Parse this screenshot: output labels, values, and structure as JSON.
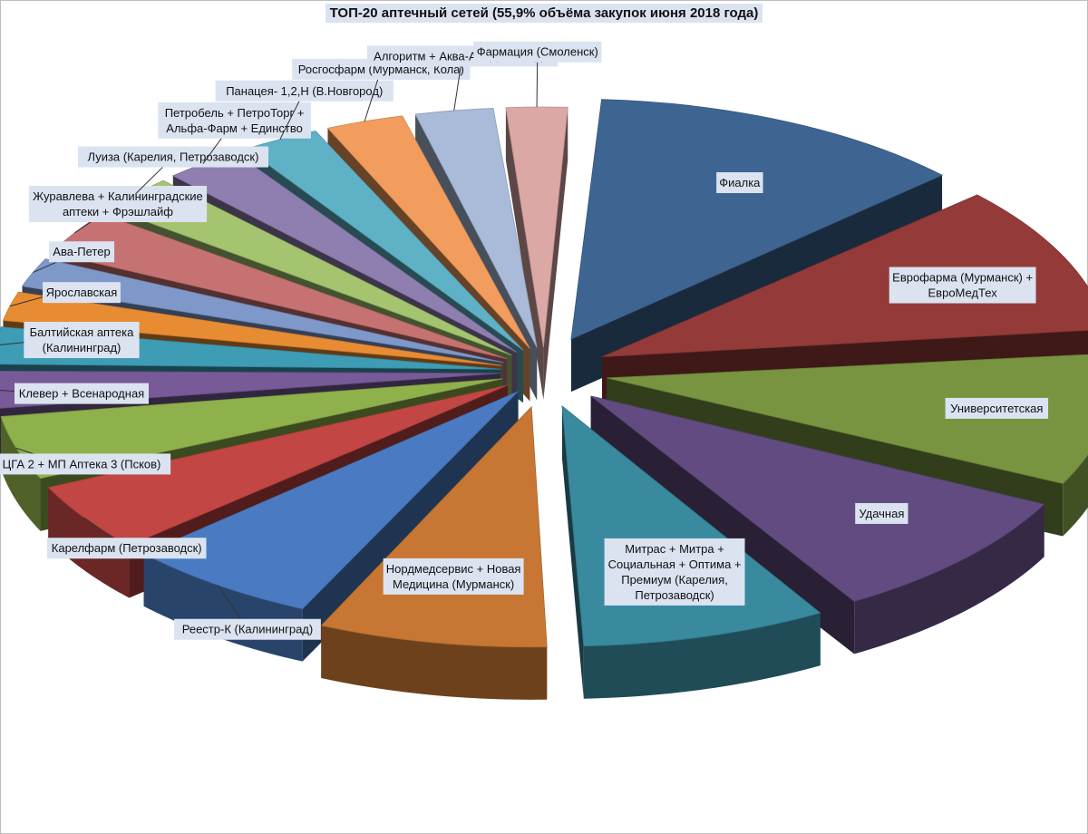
{
  "chart_data": {
    "type": "pie",
    "title": "ТОП-20 аптечный сетей (55,9% объёма закупок июня 2018 года)",
    "exploded": true,
    "three_d": true,
    "data_labels": "category names only",
    "slices": [
      {
        "label": "Фиалка",
        "value": 11.5,
        "color": "#3e6592"
      },
      {
        "label": "Еврофарма (Мурманск) + ЕвроМедТех",
        "value": 9.5,
        "color": "#943b39"
      },
      {
        "label": "Университетская",
        "value": 8.5,
        "color": "#789440"
      },
      {
        "label": "Удачная",
        "value": 8.5,
        "color": "#614b80"
      },
      {
        "label": "Митрас + Митра + Социальная + Оптима + Премиум (Карелия, Петрозаводск)",
        "value": 7.5,
        "color": "#398a9e"
      },
      {
        "label": "Нордмедсервис + Новая Медицина (Мурманск)",
        "value": 7.0,
        "color": "#c77733"
      },
      {
        "label": "Реестр-К (Калининград)",
        "value": 6.0,
        "color": "#4a7bc2"
      },
      {
        "label": "Карелфарм (Петрозаводск)",
        "value": 4.5,
        "color": "#c24643"
      },
      {
        "label": "ЦГА 2 + МП Аптека 3 (Псков)",
        "value": 4.2,
        "color": "#8fb14b"
      },
      {
        "label": "Клевер + Всенародная",
        "value": 2.5,
        "color": "#775a97"
      },
      {
        "label": "Балтийская аптека (Калининград)",
        "value": 2.5,
        "color": "#3e9cb5"
      },
      {
        "label": "Ярославская",
        "value": 2.0,
        "color": "#e88c33"
      },
      {
        "label": "Ава-Петер",
        "value": 2.0,
        "color": "#7e98c9"
      },
      {
        "label": "Журавлева + Калининградские аптеки + Фрэшлайф",
        "value": 3.0,
        "color": "#c77272"
      },
      {
        "label": "Луиза (Карелия, Петрозаводск)",
        "value": 2.5,
        "color": "#a5c46f"
      },
      {
        "label": "Петробель + ПетроТорг + Альфа-Фарм + Единство",
        "value": 2.5,
        "color": "#8f7fb0"
      },
      {
        "label": "Панацея- 1,2,Н (В.Новгород)",
        "value": 2.5,
        "color": "#5fb1c6"
      },
      {
        "label": "Росгосфарм (Мурманск, Кола)",
        "value": 2.5,
        "color": "#f29d5e"
      },
      {
        "label": "Алгоритм + Аква-А + ДНК + ВДН",
        "value": 2.5,
        "color": "#a9bbd9"
      },
      {
        "label": "Фармация (Смоленск)",
        "value": 2.0,
        "color": "#dba8a6"
      }
    ]
  }
}
